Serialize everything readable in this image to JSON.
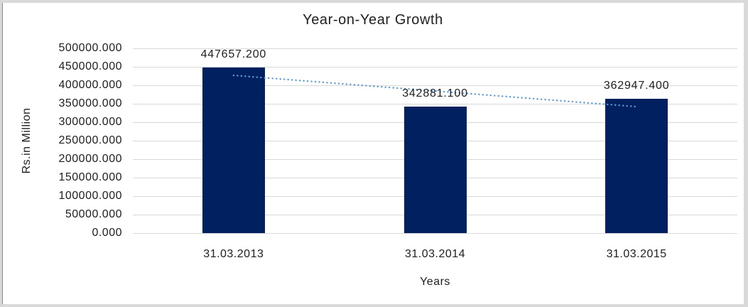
{
  "chart_data": {
    "type": "bar",
    "title": "Year-on-Year Growth",
    "xlabel": "Years",
    "ylabel": "Rs.in Million",
    "categories": [
      "31.03.2013",
      "31.03.2014",
      "31.03.2015"
    ],
    "values": [
      447657.2,
      342881.1,
      362947.4
    ],
    "data_labels": [
      "447657.200",
      "342881.100",
      "362947.400"
    ],
    "y_ticks": [
      "500000.000",
      "450000.000",
      "400000.000",
      "350000.000",
      "300000.000",
      "250000.000",
      "200000.000",
      "150000.000",
      "100000.000",
      "50000.000",
      "0.000"
    ],
    "ylim": [
      0,
      500000
    ],
    "y_step": 50000,
    "grid": true,
    "legend": "none",
    "trendline": {
      "type": "linear",
      "style": "dotted",
      "fitted_values": [
        426850.2,
        384495.2,
        342140.3
      ]
    },
    "colors": {
      "bar": "#002060",
      "trendline": "#5b9bd5",
      "gridline": "#d9d9d9",
      "text": "#1e1e1e",
      "border": "#d9d9d9"
    }
  }
}
